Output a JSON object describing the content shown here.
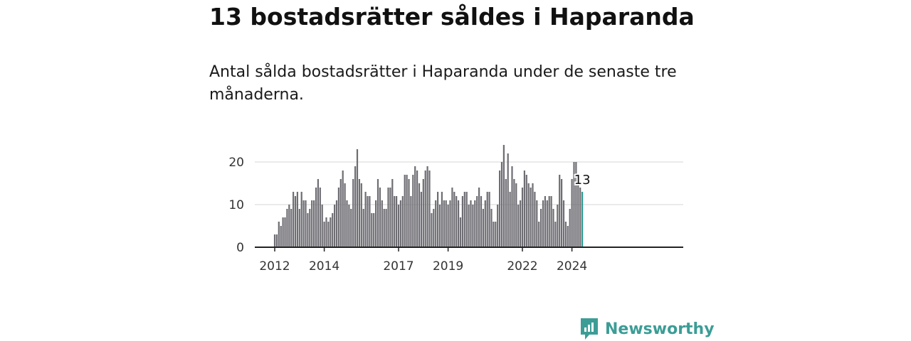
{
  "header": {
    "title": "13 bostadsrätter såldes i Haparanda",
    "subtitle": "Antal sålda bostadsrätter i Haparanda under de senaste tre månaderna."
  },
  "brand": {
    "name": "Newsworthy",
    "color": "#3c9d96"
  },
  "colors": {
    "bar": "#6e6d73",
    "highlight": "#2a9d8f",
    "grid": "#d4d4d4",
    "axis": "#222222"
  },
  "chart_data": {
    "type": "bar",
    "title": "",
    "xlabel": "",
    "ylabel": "",
    "ylim": [
      0,
      20
    ],
    "yticks": [
      0,
      10,
      20
    ],
    "x_start": "2012-01",
    "xticks": [
      {
        "label": "2012",
        "index": 0
      },
      {
        "label": "2014",
        "index": 24
      },
      {
        "label": "2017",
        "index": 60
      },
      {
        "label": "2019",
        "index": 84
      },
      {
        "label": "2022",
        "index": 120
      },
      {
        "label": "2024",
        "index": 144
      }
    ],
    "values": [
      3,
      3,
      6,
      5,
      7,
      7,
      9,
      10,
      9,
      13,
      12,
      13,
      9,
      13,
      11,
      11,
      8,
      9,
      11,
      11,
      14,
      16,
      14,
      10,
      6,
      7,
      6,
      7,
      8,
      10,
      11,
      14,
      16,
      18,
      15,
      11,
      10,
      9,
      16,
      19,
      23,
      16,
      15,
      9,
      13,
      12,
      12,
      8,
      8,
      11,
      16,
      14,
      11,
      9,
      9,
      14,
      14,
      16,
      12,
      12,
      10,
      11,
      12,
      17,
      17,
      16,
      12,
      17,
      19,
      18,
      15,
      13,
      16,
      18,
      19,
      18,
      8,
      9,
      11,
      13,
      10,
      13,
      11,
      11,
      10,
      11,
      14,
      13,
      12,
      11,
      7,
      12,
      13,
      13,
      10,
      11,
      10,
      11,
      12,
      14,
      12,
      9,
      11,
      13,
      13,
      9,
      6,
      6,
      10,
      18,
      20,
      24,
      16,
      22,
      13,
      19,
      16,
      15,
      10,
      11,
      14,
      18,
      17,
      15,
      14,
      15,
      13,
      11,
      6,
      9,
      11,
      12,
      11,
      12,
      12,
      9,
      6,
      10,
      17,
      16,
      11,
      6,
      5,
      9,
      16,
      20,
      20,
      15,
      14,
      13
    ],
    "highlight_index": 149,
    "highlight_label": "13"
  }
}
